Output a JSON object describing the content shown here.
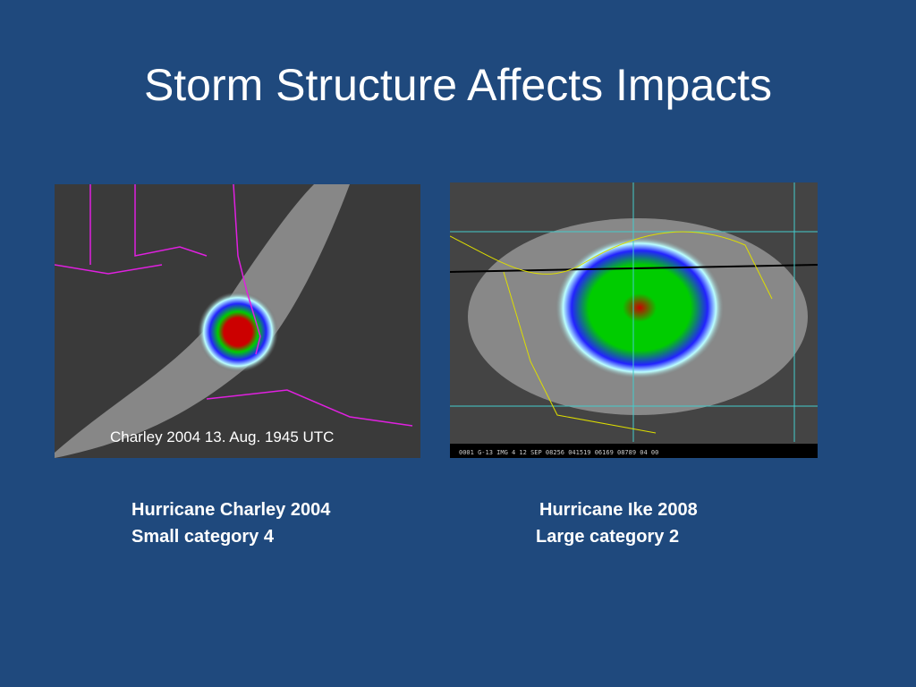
{
  "title": "Storm Structure Affects Impacts",
  "images": [
    {
      "overlay": "Charley 2004 13. Aug. 1945 UTC",
      "caption": [
        "Hurricane Charley 2004",
        "Small category 4"
      ]
    },
    {
      "overlay": "0001 G-13 IMG    4 12 SEP 08256 041519 06169 08789 04 00",
      "caption": [
        "Hurricane Ike 2008",
        "Large category 2"
      ]
    }
  ]
}
